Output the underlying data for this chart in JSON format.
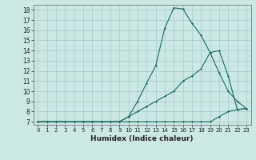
{
  "title": "",
  "xlabel": "Humidex (Indice chaleur)",
  "bg_color": "#cce8e4",
  "grid_color": "#aacfcc",
  "line_color": "#1a6b5e",
  "xlim": [
    -0.5,
    23.5
  ],
  "ylim": [
    6.7,
    18.5
  ],
  "xticks": [
    0,
    1,
    2,
    3,
    4,
    5,
    6,
    7,
    8,
    9,
    10,
    11,
    12,
    13,
    14,
    15,
    16,
    17,
    18,
    19,
    20,
    21,
    22,
    23
  ],
  "yticks": [
    7,
    8,
    9,
    10,
    11,
    12,
    13,
    14,
    15,
    16,
    17,
    18
  ],
  "line1_x": [
    0,
    1,
    2,
    3,
    4,
    5,
    6,
    7,
    8,
    9,
    10,
    11,
    12,
    13,
    14,
    15,
    16,
    17,
    18,
    19,
    20,
    21,
    22,
    23
  ],
  "line1_y": [
    7,
    7,
    7,
    7,
    7,
    7,
    7,
    7,
    7,
    7,
    7,
    7,
    7,
    7,
    7,
    7,
    7,
    7,
    7,
    7,
    7.5,
    8,
    8.2,
    8.3
  ],
  "line2_x": [
    0,
    1,
    2,
    3,
    4,
    5,
    6,
    7,
    8,
    9,
    10,
    11,
    12,
    13,
    14,
    15,
    16,
    17,
    18,
    19,
    20,
    21,
    22,
    23
  ],
  "line2_y": [
    7,
    7,
    7,
    7,
    7,
    7,
    7,
    7,
    7,
    7,
    7.5,
    9.0,
    10.8,
    12.5,
    16.2,
    18.2,
    18.1,
    16.7,
    15.5,
    13.8,
    11.8,
    10.0,
    9.0,
    8.3
  ],
  "line3_x": [
    0,
    1,
    2,
    3,
    4,
    5,
    6,
    7,
    8,
    9,
    10,
    11,
    12,
    13,
    14,
    15,
    16,
    17,
    18,
    19,
    20,
    21,
    22,
    23
  ],
  "line3_y": [
    7,
    7,
    7,
    7,
    7,
    7,
    7,
    7,
    7,
    7,
    7.5,
    8.0,
    8.5,
    9.0,
    9.5,
    10.0,
    11.0,
    11.5,
    12.2,
    13.8,
    14.0,
    11.5,
    8.2,
    8.3
  ]
}
